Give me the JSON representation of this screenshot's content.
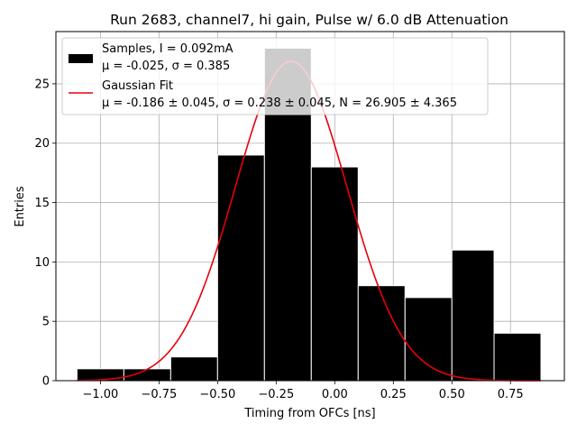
{
  "chart_data": {
    "type": "bar",
    "title": "Run 2683, channel7, hi gain, Pulse w/ 6.0 dB Attenuation",
    "xlabel": "Timing from OFCs [ns]",
    "ylabel": "Entries",
    "xlim": [
      -1.1,
      0.88
    ],
    "xlim_axes": [
      -1.19,
      0.98
    ],
    "ylim": [
      0,
      29.4
    ],
    "xticks": [
      -1.0,
      -0.75,
      -0.5,
      -0.25,
      0.0,
      0.25,
      0.5,
      0.75
    ],
    "xtick_labels": [
      "−1.00",
      "−0.75",
      "−0.50",
      "−0.25",
      "0.00",
      "0.25",
      "0.50",
      "0.75"
    ],
    "yticks": [
      0,
      5,
      10,
      15,
      20,
      25
    ],
    "ytick_labels": [
      "0",
      "5",
      "10",
      "15",
      "20",
      "25"
    ],
    "grid": true,
    "legend_position": "upper-left",
    "bin_edges": [
      -1.1,
      -0.9,
      -0.7,
      -0.5,
      -0.3,
      -0.1,
      0.1,
      0.3,
      0.5,
      0.68,
      0.88
    ],
    "series": [
      {
        "name": "Samples, I = 0.092mA",
        "kind": "histogram",
        "values": [
          1,
          1,
          2,
          19,
          28,
          18,
          8,
          7,
          11,
          4
        ],
        "color": "#000000",
        "edge_color": "#ffffff"
      },
      {
        "name": "Gaussian Fit",
        "kind": "line",
        "mu": -0.186,
        "sigma": 0.238,
        "N": 26.905,
        "color": "#e8000b"
      }
    ],
    "legend": [
      {
        "line1": "Samples, I = 0.092mA",
        "line2": "μ = -0.025, σ = 0.385",
        "swatch": "patch"
      },
      {
        "line1": "Gaussian Fit",
        "line2": "μ = -0.186 ± 0.045, σ = 0.238 ± 0.045, N = 26.905 ± 4.365",
        "swatch": "line"
      }
    ]
  }
}
